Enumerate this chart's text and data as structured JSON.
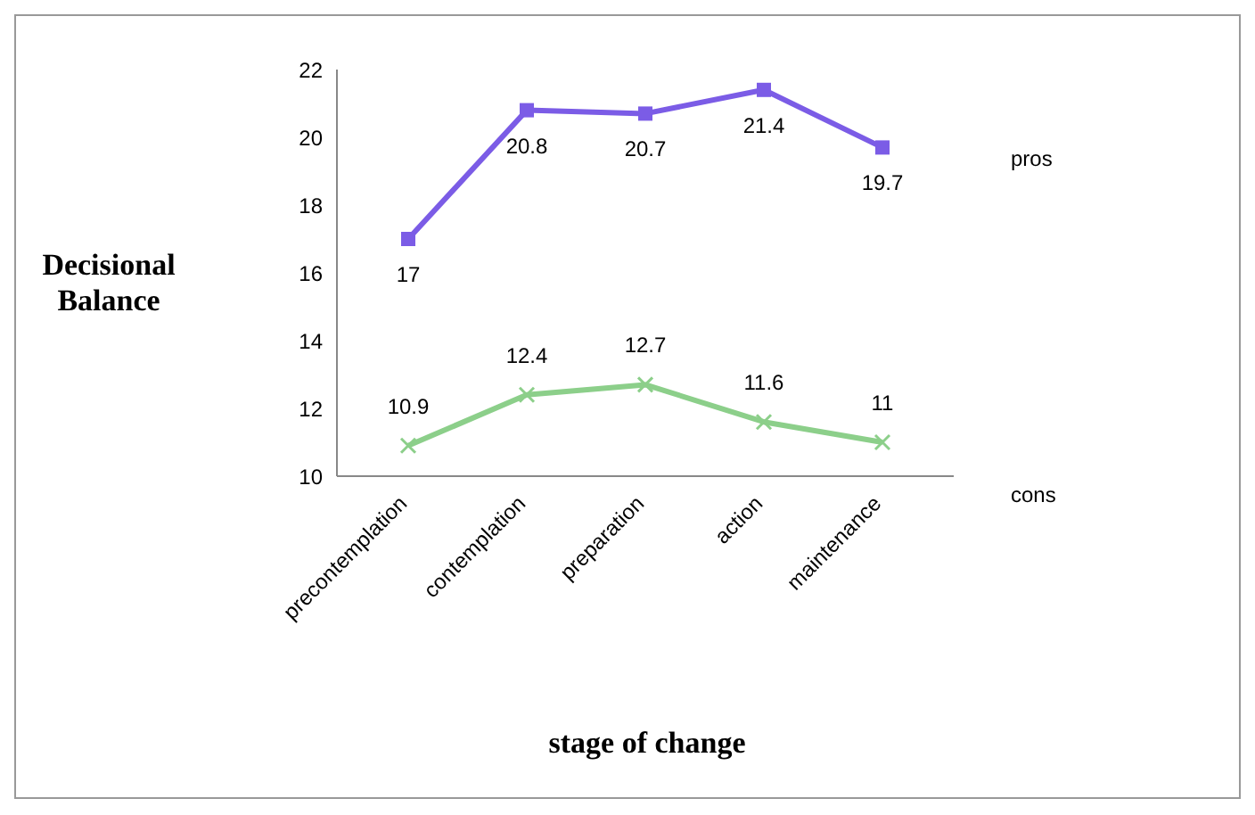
{
  "chart_data": {
    "type": "line",
    "xlabel": "stage of change",
    "ylabel": "Decisional Balance",
    "categories": [
      "precontemplation",
      "contemplation",
      "preparation",
      "action",
      "maintenance"
    ],
    "series": [
      {
        "name": "pros",
        "color": "#7b5ce6",
        "marker": "square",
        "values": [
          17,
          20.8,
          20.7,
          21.4,
          19.7
        ]
      },
      {
        "name": "cons",
        "color": "#8ccf8a",
        "marker": "cross",
        "values": [
          10.9,
          12.4,
          12.7,
          11.6,
          11
        ]
      }
    ],
    "ylim": [
      10,
      22
    ],
    "yticks": [
      10,
      12,
      14,
      16,
      18,
      20,
      22
    ],
    "grid": false,
    "legend": "right",
    "data_labels": true
  }
}
